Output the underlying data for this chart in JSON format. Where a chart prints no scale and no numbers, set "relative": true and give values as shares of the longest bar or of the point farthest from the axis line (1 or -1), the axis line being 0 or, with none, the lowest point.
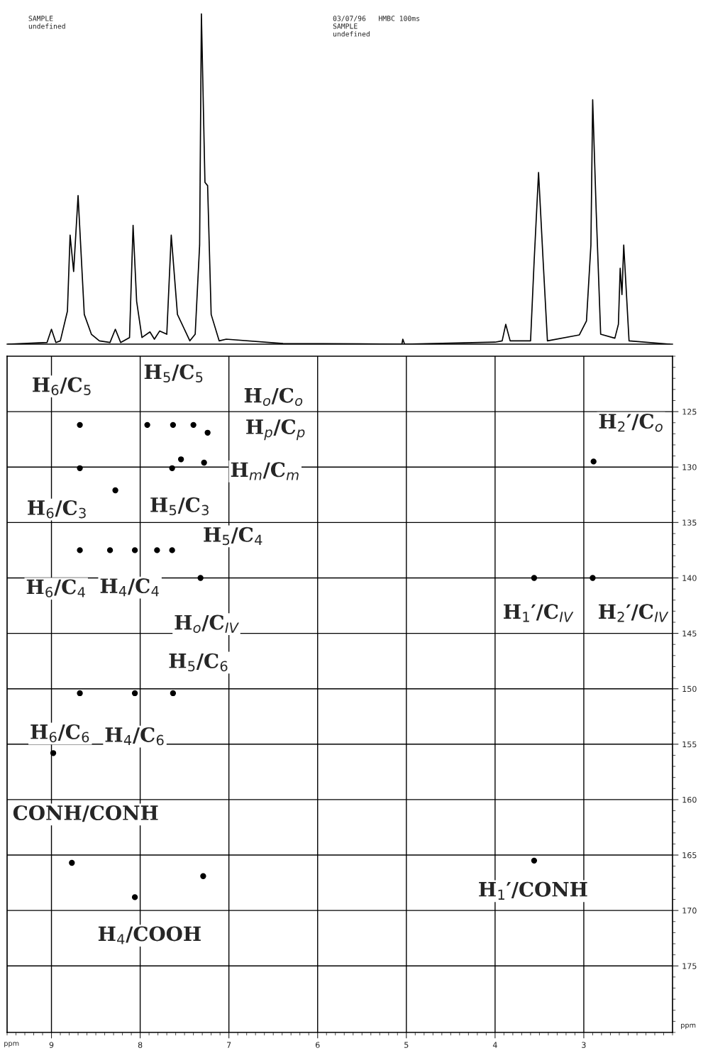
{
  "chart_data": [
    {
      "type": "line",
      "relative": true,
      "tick_labels": false,
      "xlim": [
        9.5,
        2.0
      ],
      "grid": false,
      "annotations": [
        "SAMPLE\nundefined",
        "03/07/96   HMBC 100ms\nSAMPLE\nundefined"
      ],
      "x": [
        9.49,
        9.05,
        9.0,
        8.95,
        8.9,
        8.82,
        8.79,
        8.75,
        8.7,
        8.63,
        8.55,
        8.46,
        8.34,
        8.28,
        8.22,
        8.12,
        8.08,
        8.04,
        7.98,
        7.89,
        7.84,
        7.78,
        7.7,
        7.65,
        7.58,
        7.44,
        7.38,
        7.33,
        7.31,
        7.27,
        7.24,
        7.2,
        7.11,
        7.03,
        6.39,
        5.05,
        5.04,
        5.02,
        4.0,
        3.92,
        3.88,
        3.83,
        3.6,
        3.56,
        3.51,
        3.46,
        3.41,
        3.05,
        2.97,
        2.92,
        2.9,
        2.86,
        2.81,
        2.65,
        2.61,
        2.59,
        2.57,
        2.55,
        2.49,
        2.03
      ],
      "series": [
        {
          "color": "#000000",
          "values": [
            0,
            0.005,
            0.045,
            0.005,
            0.01,
            0.1,
            0.33,
            0.22,
            0.45,
            0.09,
            0.03,
            0.01,
            0.005,
            0.045,
            0.005,
            0.02,
            0.36,
            0.13,
            0.02,
            0.037,
            0.015,
            0.04,
            0.03,
            0.33,
            0.09,
            0.01,
            0.03,
            0.3,
            1.0,
            0.49,
            0.48,
            0.09,
            0.01,
            0.015,
            0.002,
            0.0,
            0.015,
            0.0,
            0.006,
            0.01,
            0.06,
            0.01,
            0.01,
            0.25,
            0.52,
            0.26,
            0.01,
            0.028,
            0.07,
            0.3,
            0.74,
            0.4,
            0.03,
            0.018,
            0.06,
            0.23,
            0.15,
            0.3,
            0.01,
            0.0
          ]
        }
      ]
    },
    {
      "type": "scatter",
      "xlabel": "ppm",
      "ylabel": "ppm",
      "xlim": [
        9.5,
        2.0
      ],
      "ylim": [
        181,
        120
      ],
      "xticks": [
        9,
        8,
        7,
        6,
        5,
        4,
        3
      ],
      "yticks": [
        125,
        130,
        135,
        140,
        145,
        150,
        155,
        160,
        165,
        170,
        175
      ],
      "grid": true,
      "marker": "circle",
      "x": [
        8.68,
        7.92,
        7.63,
        7.4,
        7.24,
        7.28,
        7.54,
        7.64,
        8.68,
        8.28,
        8.68,
        8.34,
        8.06,
        7.81,
        7.64,
        7.32,
        3.56,
        2.9,
        2.89,
        8.68,
        8.06,
        7.63,
        8.98,
        8.77,
        7.29,
        8.06,
        3.56
      ],
      "series": [
        {
          "color": "#000000",
          "values": [
            126.2,
            126.2,
            126.2,
            126.2,
            126.9,
            129.6,
            129.3,
            130.1,
            130.1,
            132.1,
            137.5,
            137.5,
            137.5,
            137.5,
            137.5,
            140.0,
            140.0,
            140.0,
            129.5,
            150.4,
            150.4,
            150.4,
            155.8,
            165.7,
            166.9,
            168.8,
            165.5
          ]
        }
      ],
      "annotations": [
        {
          "text": "H$_{6}$/C$_{5}$",
          "x": 8.68,
          "y": 126.2
        },
        {
          "text": "H$_{5}$/C$_{5}$",
          "x": 7.63,
          "y": 126.2
        },
        {
          "text": "H$_{o}$/C$_{o}$",
          "x": 7.24,
          "y": 126.9
        },
        {
          "text": "H$_{p}$/C$_{p}$",
          "x": 7.24,
          "y": 126.9
        },
        {
          "text": "H$_{m}$/C$_{m}$",
          "x": 7.28,
          "y": 129.6
        },
        {
          "text": "H$_{6}$/C$_{3}$",
          "x": 8.68,
          "y": 130.1
        },
        {
          "text": "H$_{5}$/C$_{3}$",
          "x": 7.64,
          "y": 130.1
        },
        {
          "text": "H$_{5}$/C$_{4}$",
          "x": 7.64,
          "y": 137.5
        },
        {
          "text": "H$_{6}$/C$_{4}$",
          "x": 8.68,
          "y": 137.5
        },
        {
          "text": "H$_{4}$/C$_{4}$",
          "x": 8.06,
          "y": 137.5
        },
        {
          "text": "H$_{o}$/C$_{IV}$",
          "x": 7.32,
          "y": 140.0
        },
        {
          "text": "H$_{1}$′/C$_{IV}$",
          "x": 3.56,
          "y": 140.0
        },
        {
          "text": "H$_{2}$′/C$_{IV}$",
          "x": 2.9,
          "y": 140.0
        },
        {
          "text": "H$_{2}$′/C$_{o}$",
          "x": 2.89,
          "y": 129.5
        },
        {
          "text": "H$_{5}$/C$_{6}$",
          "x": 7.63,
          "y": 150.4
        },
        {
          "text": "H$_{6}$/C$_{6}$",
          "x": 8.68,
          "y": 150.4
        },
        {
          "text": "H$_{4}$/C$_{6}$",
          "x": 8.06,
          "y": 150.4
        },
        {
          "text": "CONH/CONH",
          "x": 8.77,
          "y": 165.7
        },
        {
          "text": "H$_{4}$/COOH",
          "x": 8.06,
          "y": 168.8
        },
        {
          "text": "H$_{1}$′/CONH",
          "x": 3.56,
          "y": 165.5
        }
      ]
    }
  ]
}
